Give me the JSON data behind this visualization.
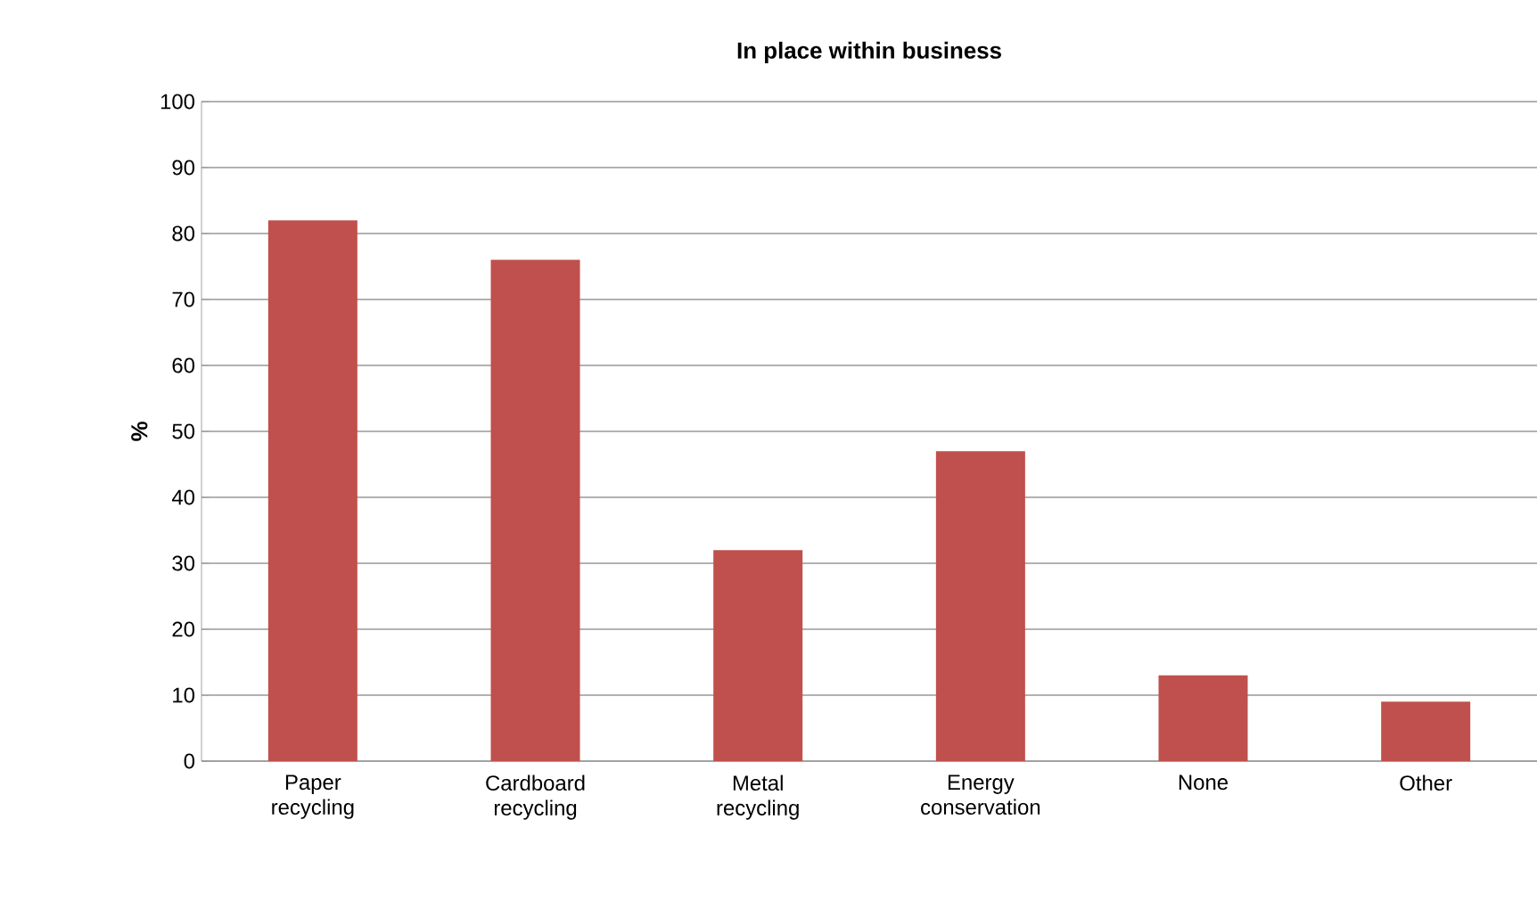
{
  "chart_data": {
    "type": "bar",
    "title": "**In place within business**",
    "ylabel": "**%**",
    "categories": [
      "Paper recycling",
      "Cardboard recycling",
      "Metal recycling",
      "Energy conservation",
      "None",
      "Other"
    ],
    "values": [
      82,
      76,
      32,
      47,
      13,
      9
    ],
    "color": "#c0504d",
    "ylim": [
      0,
      100
    ],
    "yticks": [
      0,
      10,
      20,
      30,
      40,
      50,
      60,
      70,
      80,
      90,
      100
    ],
    "grid": "y"
  }
}
